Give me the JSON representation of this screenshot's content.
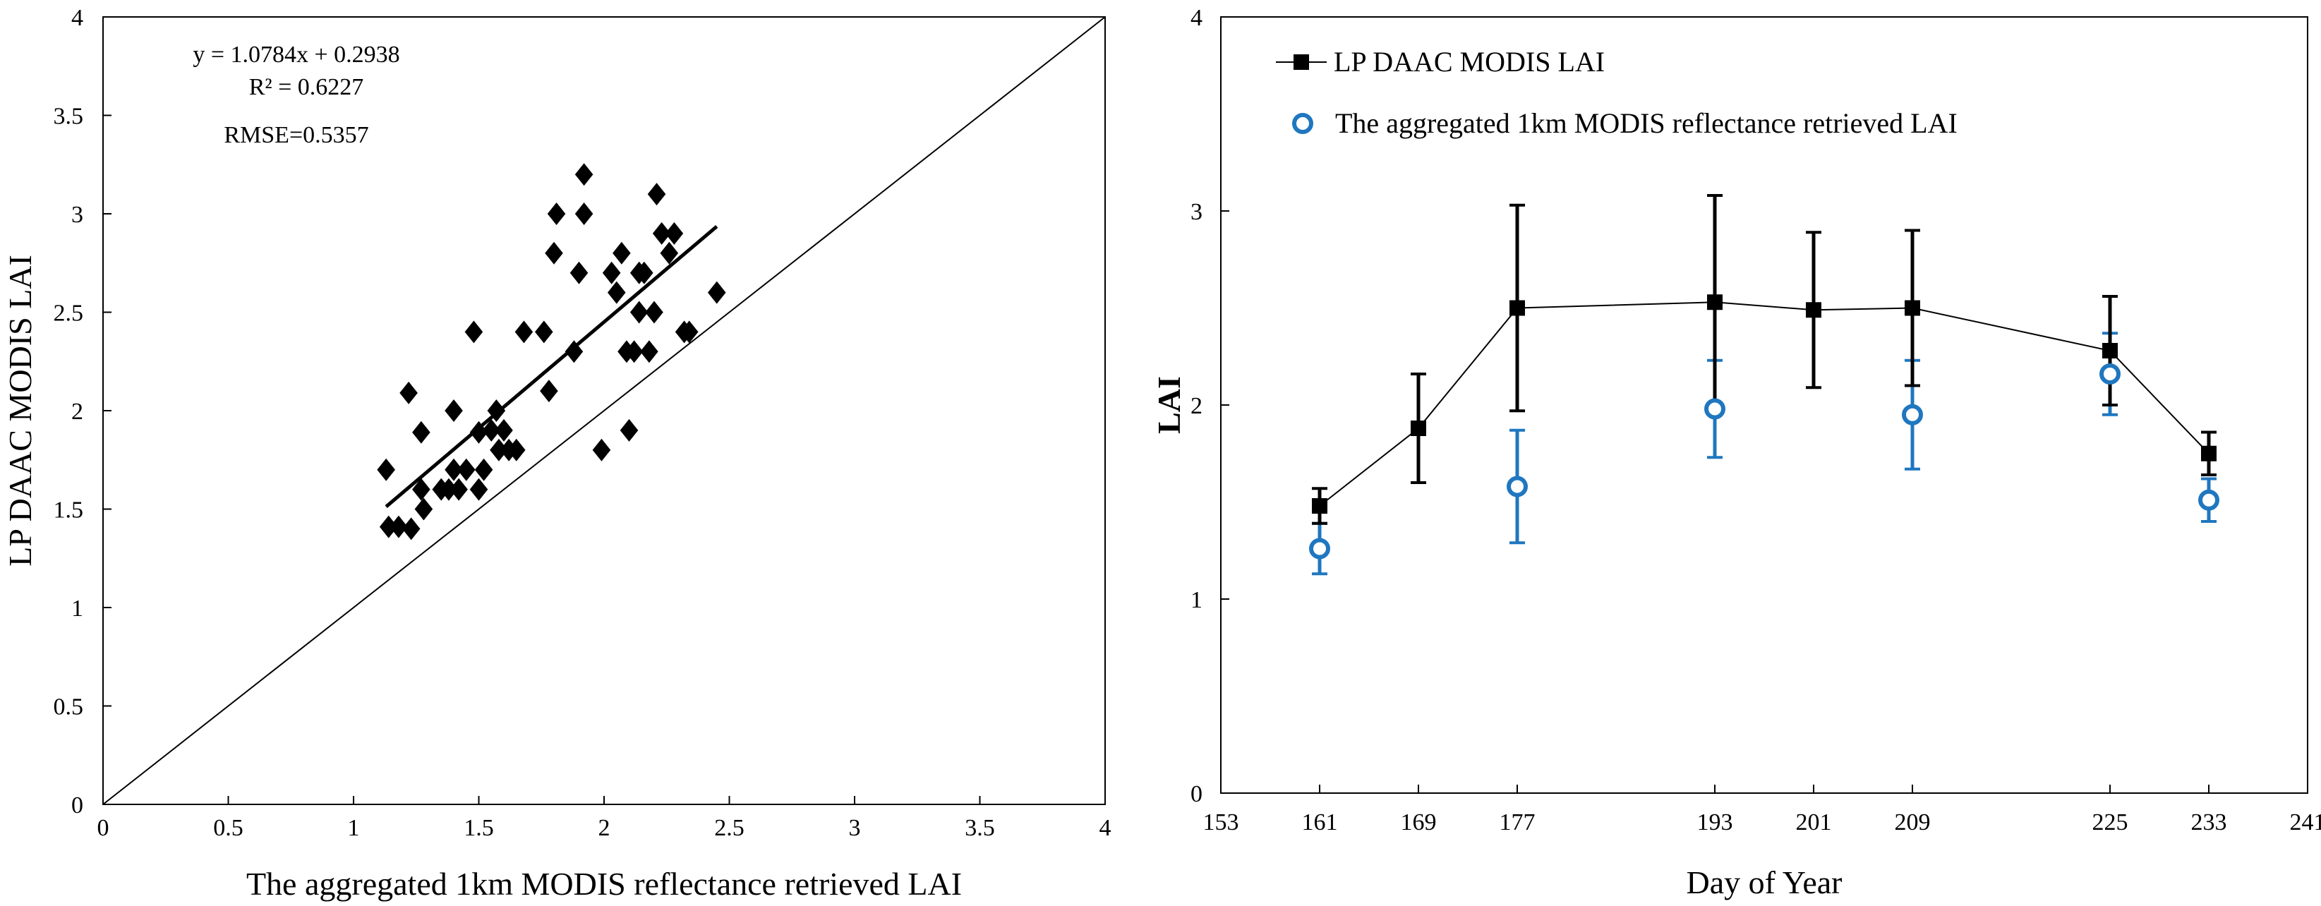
{
  "chart_data": [
    {
      "type": "scatter",
      "title": "",
      "xlabel": "The aggregated 1km MODIS reflectance retrieved LAI",
      "ylabel": "LP DAAC MODIS  LAI",
      "xlim": [
        0,
        4
      ],
      "ylim": [
        0,
        4
      ],
      "xticks": [
        "0",
        "0.5",
        "1",
        "1.5",
        "2",
        "2.5",
        "3",
        "3.5",
        "4"
      ],
      "yticks": [
        "0",
        "0.5",
        "1",
        "1.5",
        "2",
        "2.5",
        "3",
        "3.5",
        "4"
      ],
      "marker_color": "#000000",
      "annotations": {
        "equation": "y = 1.0784x + 0.2938",
        "r2": "R² = 0.6227",
        "rmse": "RMSE=0.5357"
      },
      "fit": {
        "slope": 1.0784,
        "intercept": 0.2938,
        "x_range": [
          1.13,
          2.45
        ]
      },
      "reference_line": "1:1",
      "points": [
        [
          1.13,
          1.7
        ],
        [
          1.14,
          1.41
        ],
        [
          1.18,
          1.41
        ],
        [
          1.22,
          2.09
        ],
        [
          1.23,
          1.4
        ],
        [
          1.27,
          1.89
        ],
        [
          1.27,
          1.6
        ],
        [
          1.28,
          1.5
        ],
        [
          1.35,
          1.6
        ],
        [
          1.38,
          1.6
        ],
        [
          1.4,
          1.7
        ],
        [
          1.4,
          2.0
        ],
        [
          1.42,
          1.6
        ],
        [
          1.45,
          1.7
        ],
        [
          1.48,
          2.4
        ],
        [
          1.5,
          1.6
        ],
        [
          1.5,
          1.89
        ],
        [
          1.52,
          1.7
        ],
        [
          1.55,
          1.9
        ],
        [
          1.57,
          2.0
        ],
        [
          1.58,
          1.8
        ],
        [
          1.6,
          1.9
        ],
        [
          1.62,
          1.8
        ],
        [
          1.65,
          1.8
        ],
        [
          1.68,
          2.4
        ],
        [
          1.76,
          2.4
        ],
        [
          1.78,
          2.1
        ],
        [
          1.8,
          2.8
        ],
        [
          1.81,
          3.0
        ],
        [
          1.88,
          2.3
        ],
        [
          1.9,
          2.7
        ],
        [
          1.92,
          3.0
        ],
        [
          1.92,
          3.2
        ],
        [
          1.99,
          1.8
        ],
        [
          2.03,
          2.7
        ],
        [
          2.05,
          2.6
        ],
        [
          2.07,
          2.8
        ],
        [
          2.09,
          2.3
        ],
        [
          2.1,
          1.9
        ],
        [
          2.12,
          2.3
        ],
        [
          2.14,
          2.5
        ],
        [
          2.14,
          2.7
        ],
        [
          2.16,
          2.7
        ],
        [
          2.18,
          2.3
        ],
        [
          2.2,
          2.5
        ],
        [
          2.21,
          3.1
        ],
        [
          2.23,
          2.9
        ],
        [
          2.26,
          2.8
        ],
        [
          2.28,
          2.9
        ],
        [
          2.32,
          2.4
        ],
        [
          2.34,
          2.4
        ],
        [
          2.45,
          2.6
        ]
      ]
    },
    {
      "type": "line",
      "title": "",
      "xlabel": "Day  of  Year",
      "ylabel": "LAI",
      "xlim": [
        153,
        241
      ],
      "ylim": [
        0,
        4
      ],
      "xticks": [
        "153",
        "161",
        "169",
        "177",
        "193",
        "201",
        "209",
        "225",
        "233",
        "241"
      ],
      "yticks": [
        "0",
        "1",
        "2",
        "3",
        "4"
      ],
      "legend_position": "top-left",
      "series": [
        {
          "name": "LP DAAC MODIS  LAI",
          "style": "line-square",
          "color": "#000000",
          "x": [
            161,
            169,
            177,
            193,
            201,
            209,
            225,
            233
          ],
          "values": [
            1.48,
            1.88,
            2.5,
            2.53,
            2.49,
            2.5,
            2.28,
            1.75
          ],
          "error": [
            0.09,
            0.28,
            0.53,
            0.55,
            0.4,
            0.4,
            0.28,
            0.11
          ]
        },
        {
          "name": "The aggregated 1km MODIS reflectance retrieved LAI",
          "style": "open-circle",
          "color": "#1f77bf",
          "x": [
            161,
            177,
            193,
            209,
            225,
            233
          ],
          "values": [
            1.26,
            1.58,
            1.98,
            1.95,
            2.16,
            1.51
          ],
          "error": [
            0.13,
            0.29,
            0.25,
            0.28,
            0.21,
            0.11
          ]
        }
      ]
    }
  ]
}
